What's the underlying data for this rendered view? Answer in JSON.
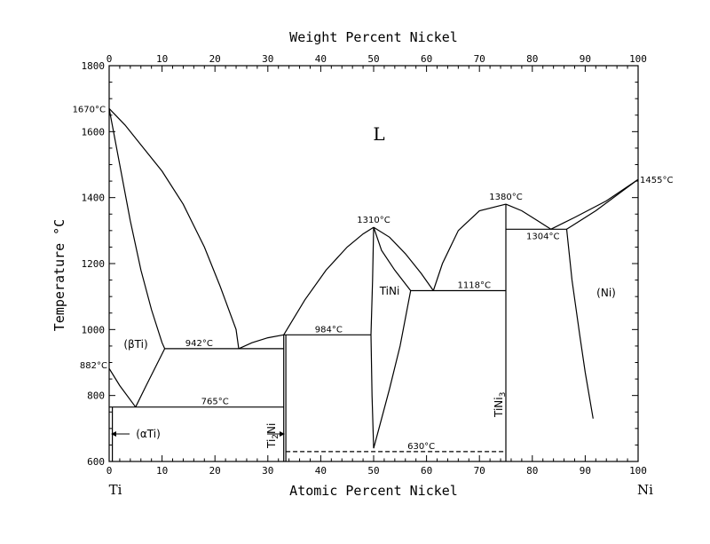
{
  "chart_data": {
    "type": "phase-diagram",
    "xlabel": "Atomic Percent Nickel",
    "x2label": "Weight Percent Nickel",
    "ylabel": "Temperature °C",
    "xlim": [
      0,
      100
    ],
    "ylim": [
      600,
      1800
    ],
    "x_ticks": [
      "0",
      "10",
      "20",
      "30",
      "40",
      "50",
      "60",
      "70",
      "80",
      "90",
      "100"
    ],
    "x2_ticks": [
      "0",
      "10",
      "20",
      "30",
      "40",
      "50",
      "60",
      "70",
      "80",
      "90",
      "100"
    ],
    "y_ticks": [
      "600",
      "800",
      "1000",
      "1200",
      "1400",
      "1600",
      "1800"
    ],
    "end_labels": {
      "left": "Ti",
      "right": "Ni"
    },
    "temperature_labels": [
      {
        "text": "1670°C",
        "x": 0,
        "y": 1670
      },
      {
        "text": "882°C",
        "x": 0,
        "y": 882
      },
      {
        "text": "942°C",
        "x": 17,
        "y": 942
      },
      {
        "text": "765°C",
        "x": 20,
        "y": 765
      },
      {
        "text": "984°C",
        "x": 41.5,
        "y": 984
      },
      {
        "text": "1310°C",
        "x": 50,
        "y": 1310
      },
      {
        "text": "1118°C",
        "x": 69,
        "y": 1118
      },
      {
        "text": "1380°C",
        "x": 75,
        "y": 1380
      },
      {
        "text": "1304°C",
        "x": 82,
        "y": 1304
      },
      {
        "text": "1455°C",
        "x": 100,
        "y": 1455
      },
      {
        "text": "630°C",
        "x": 59,
        "y": 630
      }
    ],
    "phase_labels": {
      "liquid": "L",
      "beta_ti": "(βTi)",
      "alpha_ti": "(αTi)",
      "tini": "TiNi",
      "ti2ni_main": "Ti",
      "ti2ni_sub": "2",
      "ti2ni_tail": "Ni",
      "tini3_main": "TiNi",
      "tini3_sub": "3",
      "ni": "(Ni)"
    },
    "lines": {
      "liquidus_ti": [
        [
          0,
          1670
        ],
        [
          3,
          1620
        ],
        [
          6,
          1560
        ],
        [
          10,
          1480
        ],
        [
          14,
          1380
        ],
        [
          18,
          1250
        ],
        [
          21,
          1130
        ],
        [
          24,
          1000
        ],
        [
          24.5,
          942
        ]
      ],
      "beta_solidus": [
        [
          0,
          1670
        ],
        [
          2,
          1500
        ],
        [
          4,
          1330
        ],
        [
          6,
          1180
        ],
        [
          8,
          1060
        ],
        [
          10,
          960
        ],
        [
          10.5,
          942
        ]
      ],
      "eutectic_942": [
        [
          10.5,
          942
        ],
        [
          33,
          942
        ]
      ],
      "liquidus_ti2ni": [
        [
          24.5,
          942
        ],
        [
          27,
          960
        ],
        [
          30,
          975
        ],
        [
          33,
          984
        ]
      ],
      "ti2ni_left": [
        [
          33,
          600
        ],
        [
          33,
          984
        ]
      ],
      "ti2ni_right": [
        [
          33.4,
          600
        ],
        [
          33.4,
          984
        ]
      ],
      "eutectic_984": [
        [
          33,
          984
        ],
        [
          49.5,
          984
        ]
      ],
      "liquidus_tini_left": [
        [
          33,
          984
        ],
        [
          37,
          1090
        ],
        [
          41,
          1180
        ],
        [
          45,
          1250
        ],
        [
          48,
          1290
        ],
        [
          50,
          1310
        ]
      ],
      "liquidus_tini_right": [
        [
          50,
          1310
        ],
        [
          53,
          1280
        ],
        [
          56,
          1230
        ],
        [
          59,
          1170
        ],
        [
          61.3,
          1118
        ]
      ],
      "tini_solvus_left": [
        [
          49.5,
          984
        ],
        [
          49.8,
          1150
        ],
        [
          50,
          1310
        ]
      ],
      "tini_solvus_right": [
        [
          50,
          1310
        ],
        [
          51.5,
          1240
        ],
        [
          54,
          1180
        ],
        [
          57,
          1118
        ]
      ],
      "tini_low_left": [
        [
          49.5,
          984
        ],
        [
          49.7,
          800
        ],
        [
          50,
          640
        ]
      ],
      "tini_low_right": [
        [
          57,
          1118
        ],
        [
          55,
          950
        ],
        [
          53,
          820
        ],
        [
          51,
          700
        ],
        [
          50,
          640
        ]
      ],
      "eutectic_1118": [
        [
          57,
          1118
        ],
        [
          75,
          1118
        ]
      ],
      "liquidus_tini3_left": [
        [
          61.3,
          1118
        ],
        [
          63,
          1200
        ],
        [
          66,
          1300
        ],
        [
          70,
          1360
        ],
        [
          75,
          1380
        ]
      ],
      "liquidus_tini3_right": [
        [
          75,
          1380
        ],
        [
          78,
          1360
        ],
        [
          81,
          1330
        ],
        [
          83.5,
          1304
        ]
      ],
      "tini3_line": [
        [
          75,
          600
        ],
        [
          75,
          1380
        ]
      ],
      "eutectic_1304": [
        [
          75,
          1304
        ],
        [
          86.5,
          1304
        ]
      ],
      "liquidus_ni": [
        [
          83.5,
          1304
        ],
        [
          88,
          1340
        ],
        [
          94,
          1390
        ],
        [
          100,
          1455
        ]
      ],
      "solidus_ni": [
        [
          86.5,
          1304
        ],
        [
          92,
          1360
        ],
        [
          100,
          1455
        ]
      ],
      "ni_solvus": [
        [
          86.5,
          1304
        ],
        [
          87.5,
          1150
        ],
        [
          89,
          980
        ],
        [
          90,
          870
        ],
        [
          91.5,
          730
        ]
      ],
      "alpha_beta_left": [
        [
          0,
          882
        ],
        [
          2,
          830
        ],
        [
          5,
          765
        ]
      ],
      "alpha_beta_right": [
        [
          5,
          765
        ],
        [
          7,
          830
        ],
        [
          10.5,
          942
        ]
      ],
      "eutectoid_765": [
        [
          0,
          765
        ],
        [
          33,
          765
        ]
      ],
      "alpha_solvus": [
        [
          0.6,
          600
        ],
        [
          0.6,
          765
        ]
      ],
      "dashed_630": [
        [
          33.4,
          630
        ],
        [
          75,
          630
        ]
      ]
    }
  }
}
